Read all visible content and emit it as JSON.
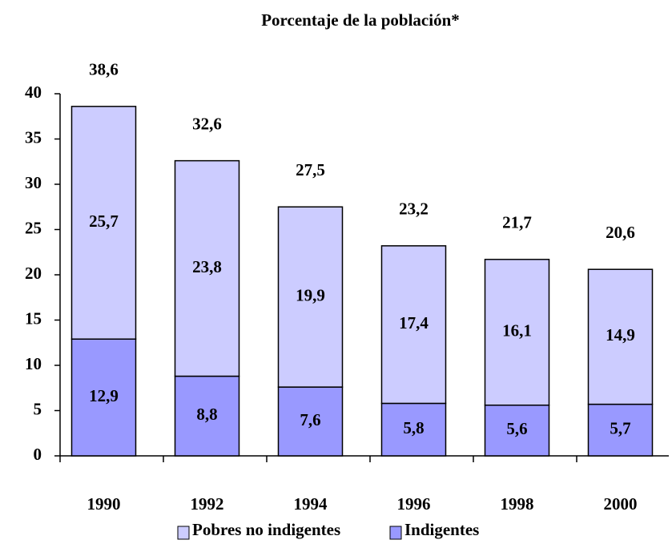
{
  "chart_data": {
    "type": "stacked_bar",
    "title": "Porcentaje de la población*",
    "categories": [
      "1990",
      "1992",
      "1994",
      "1996",
      "1998",
      "2000"
    ],
    "series": [
      {
        "name": "Indigentes",
        "color": "#9999ff",
        "values": [
          12.9,
          8.8,
          7.6,
          5.8,
          5.6,
          5.7
        ],
        "value_labels": [
          "12,9",
          "8,8",
          "7,6",
          "5,8",
          "5,6",
          "5,7"
        ]
      },
      {
        "name": "Pobres no indigentes",
        "color": "#ccccff",
        "values": [
          25.7,
          23.8,
          19.9,
          17.4,
          16.1,
          14.9
        ],
        "value_labels": [
          "25,7",
          "23,8",
          "19,9",
          "17,4",
          "16,1",
          "14,9"
        ]
      }
    ],
    "totals": [
      38.6,
      32.6,
      27.5,
      23.2,
      21.7,
      20.6
    ],
    "total_labels": [
      "38,6",
      "32,6",
      "27,5",
      "23,2",
      "21,7",
      "20,6"
    ],
    "ylim": [
      0,
      40
    ],
    "yticks": [
      0,
      5,
      10,
      15,
      20,
      25,
      30,
      35,
      40
    ]
  }
}
